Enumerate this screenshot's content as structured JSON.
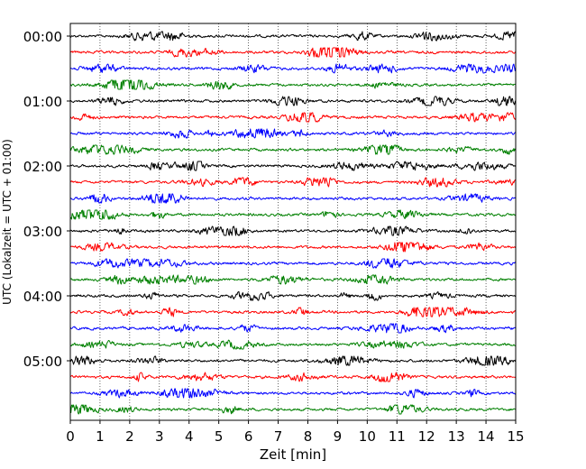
{
  "chart_data": {
    "type": "line",
    "title": "",
    "xlabel": "Zeit  [min]",
    "ylabel": "UTC (Lokalzeit = UTC + 01:00)",
    "xlim": [
      0,
      15
    ],
    "x_ticks": [
      0,
      1,
      2,
      3,
      4,
      5,
      6,
      7,
      8,
      9,
      10,
      11,
      12,
      13,
      14,
      15
    ],
    "y_tick_labels": [
      "00:00",
      "01:00",
      "02:00",
      "03:00",
      "04:00",
      "05:00"
    ],
    "grid": "vertical dotted",
    "trace_interval_minutes": 15,
    "trace_count": 24,
    "trace_colors": [
      "#000000",
      "#ff0000",
      "#0000ff",
      "#008000"
    ],
    "series": [
      {
        "start": "00:00"
      },
      {
        "start": "00:15"
      },
      {
        "start": "00:30"
      },
      {
        "start": "00:45"
      },
      {
        "start": "01:00"
      },
      {
        "start": "01:15"
      },
      {
        "start": "01:30"
      },
      {
        "start": "01:45"
      },
      {
        "start": "02:00"
      },
      {
        "start": "02:15"
      },
      {
        "start": "02:30"
      },
      {
        "start": "02:45"
      },
      {
        "start": "03:00"
      },
      {
        "start": "03:15"
      },
      {
        "start": "03:30"
      },
      {
        "start": "03:45"
      },
      {
        "start": "04:00"
      },
      {
        "start": "04:15"
      },
      {
        "start": "04:30"
      },
      {
        "start": "04:45"
      },
      {
        "start": "05:00"
      },
      {
        "start": "05:15"
      },
      {
        "start": "05:30"
      },
      {
        "start": "05:45"
      }
    ]
  }
}
